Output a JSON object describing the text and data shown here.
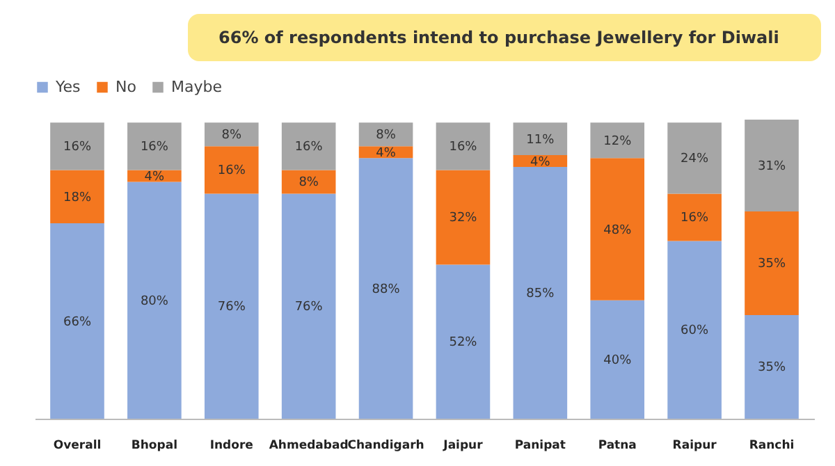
{
  "chart_data": {
    "type": "bar",
    "stacked": true,
    "title": "66% of respondents intend to purchase Jewellery for Diwali",
    "categories": [
      "Overall",
      "Bhopal",
      "Indore",
      "Ahmedabad",
      "Chandigarh",
      "Jaipur",
      "Panipat",
      "Patna",
      "Raipur",
      "Ranchi"
    ],
    "series": [
      {
        "name": "Yes",
        "color": "#8eaadc",
        "values": [
          66,
          80,
          76,
          76,
          88,
          52,
          85,
          40,
          60,
          35
        ],
        "value_labels": [
          "66%",
          "80%",
          "76%",
          "76%",
          "88%",
          "52%",
          "85%",
          "40%",
          "60%",
          "35%"
        ]
      },
      {
        "name": "No",
        "color": "#f4771f",
        "values": [
          18,
          4,
          16,
          8,
          4,
          32,
          4,
          48,
          16,
          35
        ],
        "value_labels": [
          "18%",
          "4%",
          "16%",
          "8%",
          "4%",
          "32%",
          "4%",
          "48%",
          "16%",
          "35%"
        ]
      },
      {
        "name": "Maybe",
        "color": "#a6a6a6",
        "values": [
          16,
          16,
          8,
          16,
          8,
          16,
          11,
          12,
          24,
          31
        ],
        "value_labels": [
          "16%",
          "16%",
          "8%",
          "16%",
          "8%",
          "16%",
          "11%",
          "12%",
          "24%",
          "31%"
        ]
      }
    ],
    "legend": "top",
    "grid": false
  }
}
